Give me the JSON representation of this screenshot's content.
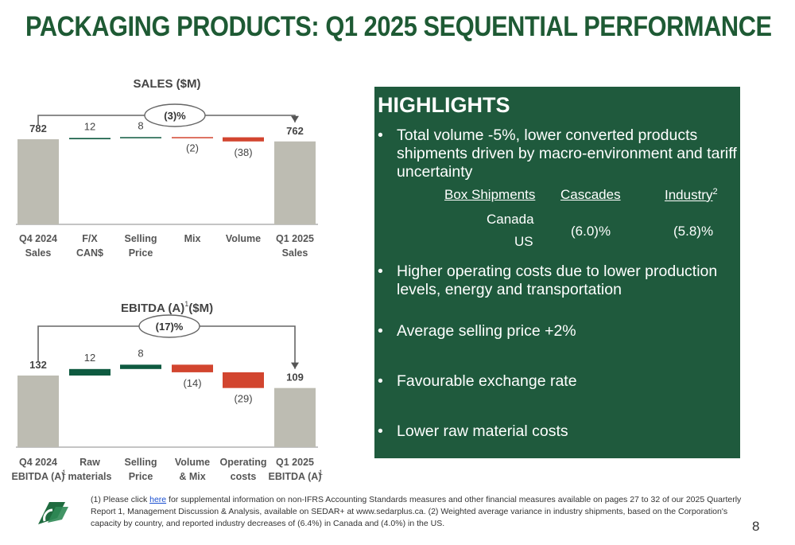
{
  "page": {
    "title": "PACKAGING PRODUCTS: Q1 2025 SEQUENTIAL PERFORMANCE",
    "page_number": "8"
  },
  "colors": {
    "title": "#1e5a34",
    "panel": "#1f5a3d",
    "positive": "#0e5a40",
    "negative": "#d2452f",
    "total": "#bdbcb2"
  },
  "chart_data": [
    {
      "type": "bar",
      "subtype": "waterfall",
      "title": "SALES ($M)",
      "change_label": "(3)%",
      "categories": [
        "Q4 2024 Sales",
        "F/X CAN$",
        "Selling Price",
        "Mix",
        "Volume",
        "Q1 2025 Sales"
      ],
      "category_lines": [
        [
          "Q4 2024",
          "Sales"
        ],
        [
          "F/X",
          "CAN$"
        ],
        [
          "Selling",
          "Price"
        ],
        [
          "Mix"
        ],
        [
          "Volume"
        ],
        [
          "Q1 2025",
          "Sales"
        ]
      ],
      "kinds": [
        "total",
        "delta",
        "delta",
        "delta",
        "delta",
        "total"
      ],
      "values": [
        782,
        12,
        8,
        -2,
        -38,
        762
      ],
      "value_labels": [
        "782",
        "12",
        "8",
        "(2)",
        "(38)",
        "762"
      ]
    },
    {
      "type": "bar",
      "subtype": "waterfall",
      "title": "EBITDA (A)",
      "title_sup": "1",
      "title_suffix": "($M)",
      "change_label": "(17)%",
      "categories": [
        "Q4 2024 EBITDA (A)",
        "Raw materials",
        "Selling Price",
        "Volume & Mix",
        "Operating costs",
        "Q1 2025 EBITDA (A)"
      ],
      "category_lines": [
        [
          "Q4 2024",
          "EBITDA (A)"
        ],
        [
          "Raw",
          "materials"
        ],
        [
          "Selling",
          "Price"
        ],
        [
          "Volume",
          "& Mix"
        ],
        [
          "Operating",
          "costs"
        ],
        [
          "Q1 2025",
          "EBITDA (A)"
        ]
      ],
      "category_sups": [
        "1",
        "",
        "",
        "",
        "",
        "1"
      ],
      "kinds": [
        "total",
        "delta",
        "delta",
        "delta",
        "delta",
        "total"
      ],
      "values": [
        132,
        12,
        8,
        -14,
        -29,
        109
      ],
      "value_labels": [
        "132",
        "12",
        "8",
        "(14)",
        "(29)",
        "109"
      ]
    }
  ],
  "highlights": {
    "title": "HIGHLIGHTS",
    "bullet_symbol": "•",
    "bullets": [
      "Total volume -5%, lower converted products shipments driven by macro-environment and tariff uncertainty",
      "Higher operating costs due to lower production levels, energy and transportation",
      "Average selling price +2%",
      "Favourable exchange rate",
      "Lower raw material costs"
    ],
    "table": {
      "headers": [
        "Box Shipments",
        "Cascades",
        "Industry"
      ],
      "industry_sup": "2",
      "rows": [
        "Canada",
        "US"
      ],
      "cascades_value": "(6.0)%",
      "industry_value": "(5.8)%"
    }
  },
  "footnote": {
    "prefix": "(1) Please click ",
    "link_text": "here",
    "rest": " for supplemental information on non-IFRS Accounting Standards measures and other financial measures available on pages 27 to 32 of our 2025 Quarterly Report 1, Management Discussion & Analysis, available on SEDAR+ at www.sedarplus.ca. (2) Weighted average variance in industry shipments, based on the Corporation's capacity by country, and reported industry decreases of (6.4%) in Canada and (4.0%) in the US."
  }
}
